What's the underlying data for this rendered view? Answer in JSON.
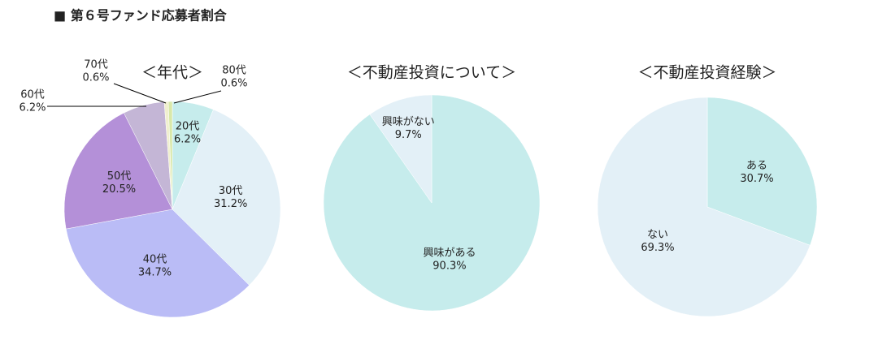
{
  "title": "■ 第６号ファンド応募者割合",
  "chart_data": [
    {
      "type": "pie",
      "title": "＜年代＞",
      "categories": [
        "20代",
        "30代",
        "40代",
        "50代",
        "60代",
        "70代",
        "80代"
      ],
      "values": [
        6.2,
        31.2,
        34.7,
        20.5,
        6.2,
        0.6,
        0.6
      ],
      "value_labels": [
        "6.2%",
        "31.2%",
        "34.7%",
        "20.5%",
        "6.2%",
        "0.6%",
        "0.6%"
      ],
      "colors": [
        "#c6ecec",
        "#e3f0f7",
        "#babcf6",
        "#b490d8",
        "#c4b6d6",
        "#f0efcf",
        "#d9e8a9"
      ]
    },
    {
      "type": "pie",
      "title": "＜不動産投資について＞",
      "categories": [
        "興味がある",
        "興味がない"
      ],
      "values": [
        90.3,
        9.7
      ],
      "value_labels": [
        "90.3%",
        "9.7%"
      ],
      "colors": [
        "#c6ecec",
        "#e3f0f7"
      ]
    },
    {
      "type": "pie",
      "title": "＜不動産投資経験＞",
      "categories": [
        "ある",
        "ない"
      ],
      "values": [
        30.7,
        69.3
      ],
      "value_labels": [
        "30.7%",
        "69.3%"
      ],
      "colors": [
        "#c6ecec",
        "#e3f0f7"
      ]
    }
  ]
}
